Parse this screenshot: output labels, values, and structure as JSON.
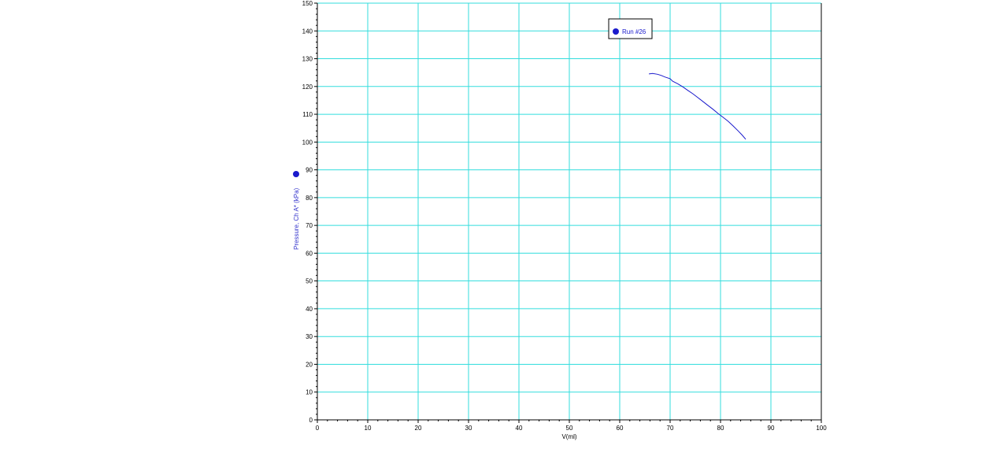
{
  "colors": {
    "grid": "#33dddd",
    "series": "#1a1acc",
    "axis": "#000000",
    "label": "#3333cc"
  },
  "chart_data": {
    "type": "line",
    "title": "",
    "xlabel": "V(ml)",
    "ylabel": "Pressure, Ch A* (kPa)",
    "xlim": [
      0,
      100
    ],
    "ylim": [
      0,
      150
    ],
    "x_ticks": [
      0,
      10,
      20,
      30,
      40,
      50,
      60,
      70,
      80,
      90,
      100
    ],
    "y_ticks": [
      0,
      10,
      20,
      30,
      40,
      50,
      60,
      70,
      80,
      90,
      100,
      110,
      120,
      130,
      140,
      150
    ],
    "grid": true,
    "legend": {
      "entries": [
        "Run #26"
      ],
      "placement": "top-right"
    },
    "series": [
      {
        "name": "Run #26",
        "x": [
          65.8,
          66.5,
          67.5,
          68.2,
          69.0,
          70.0,
          70.5,
          71.5,
          72.5,
          73.5,
          74.5,
          75.5,
          76.5,
          77.5,
          78.5,
          79.5,
          80.5,
          81.5,
          82.5,
          83.5,
          84.3,
          85.0
        ],
        "y": [
          124.5,
          124.7,
          124.4,
          124.0,
          123.4,
          122.8,
          121.9,
          121.0,
          119.9,
          118.6,
          117.4,
          116.0,
          114.6,
          113.2,
          111.8,
          110.3,
          108.9,
          107.5,
          105.8,
          104.0,
          102.5,
          101.0
        ]
      }
    ]
  }
}
